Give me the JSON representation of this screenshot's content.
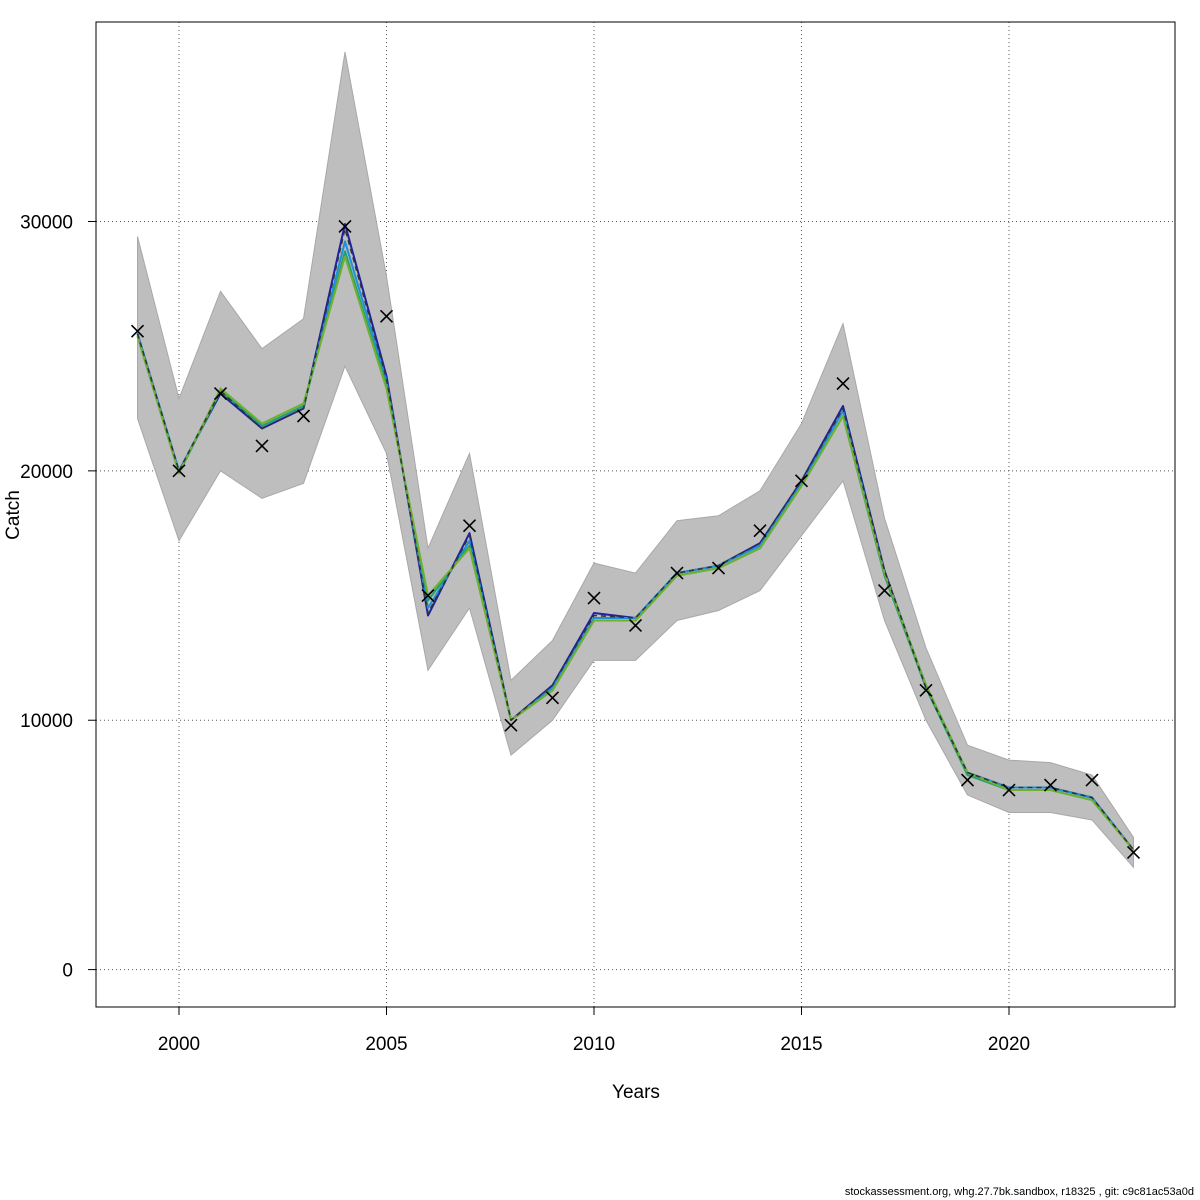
{
  "chart_data": {
    "type": "line",
    "title": "",
    "xlabel": "Years",
    "ylabel": "Catch",
    "xlim": [
      1998,
      2024
    ],
    "ylim": [
      -1500,
      38000
    ],
    "x_ticks": [
      2000,
      2005,
      2010,
      2015,
      2020
    ],
    "y_ticks": [
      0,
      10000,
      20000,
      30000
    ],
    "grid": true,
    "x": [
      1999,
      2000,
      2001,
      2002,
      2003,
      2004,
      2005,
      2006,
      2007,
      2008,
      2009,
      2010,
      2011,
      2012,
      2013,
      2014,
      2015,
      2016,
      2017,
      2018,
      2019,
      2020,
      2021,
      2022,
      2023
    ],
    "band_upper": [
      29400,
      22900,
      27200,
      24900,
      26100,
      36800,
      27800,
      16900,
      20700,
      11600,
      13200,
      16300,
      15900,
      18000,
      18200,
      19200,
      21900,
      25900,
      18100,
      12900,
      9000,
      8400,
      8300,
      7800,
      5300
    ],
    "band_lower": [
      22100,
      17200,
      20000,
      18900,
      19500,
      24200,
      20700,
      12000,
      14500,
      8600,
      10000,
      12400,
      12400,
      14000,
      14400,
      15200,
      17400,
      19600,
      14000,
      10000,
      7000,
      6300,
      6300,
      6000,
      4100
    ],
    "observed": [
      25600,
      20000,
      23100,
      21000,
      22200,
      29800,
      26200,
      15000,
      17800,
      9800,
      10900,
      14900,
      13800,
      15900,
      16100,
      17600,
      19600,
      23500,
      15200,
      11200,
      7600,
      7200,
      7400,
      7600,
      4700
    ],
    "series": [
      {
        "color": "#2020a0",
        "values": [
          25500,
          20000,
          23100,
          21700,
          22500,
          29900,
          23800,
          14200,
          17500,
          10000,
          11400,
          14300,
          14100,
          15900,
          16200,
          17100,
          19600,
          22600,
          16000,
          11300,
          7900,
          7300,
          7300,
          6900,
          4800
        ]
      },
      {
        "color": "#1e90d8",
        "values": [
          25500,
          20000,
          23200,
          21800,
          22600,
          29200,
          23600,
          14500,
          17200,
          10000,
          11300,
          14100,
          14100,
          15900,
          16200,
          17000,
          19500,
          22400,
          15900,
          11400,
          7900,
          7300,
          7300,
          6900,
          4800
        ]
      },
      {
        "color": "#20a070",
        "values": [
          25400,
          19900,
          23200,
          21800,
          22600,
          28800,
          23400,
          14800,
          17000,
          10000,
          11200,
          14000,
          14000,
          15800,
          16100,
          16900,
          19400,
          22200,
          15800,
          11300,
          7800,
          7200,
          7200,
          6800,
          4800
        ]
      },
      {
        "color": "#70b030",
        "values": [
          25400,
          19900,
          23300,
          21900,
          22700,
          28600,
          23300,
          15000,
          16900,
          10000,
          11200,
          14000,
          14000,
          15800,
          16100,
          16900,
          19400,
          22200,
          15900,
          11400,
          7900,
          7200,
          7200,
          6800,
          4800
        ]
      },
      {
        "color": "#333333",
        "dash": true,
        "values": [
          25500,
          20000,
          23200,
          21700,
          22500,
          29700,
          23700,
          14300,
          17400,
          10000,
          11400,
          14200,
          14100,
          15900,
          16200,
          17100,
          19600,
          22500,
          16000,
          11300,
          7900,
          7300,
          7300,
          6900,
          4800
        ]
      }
    ],
    "band_color": "#bebebe"
  },
  "footer": {
    "text": "stockassessment.org, whg.27.7bk.sandbox, r18325 , git: c9c81ac53a0d"
  }
}
